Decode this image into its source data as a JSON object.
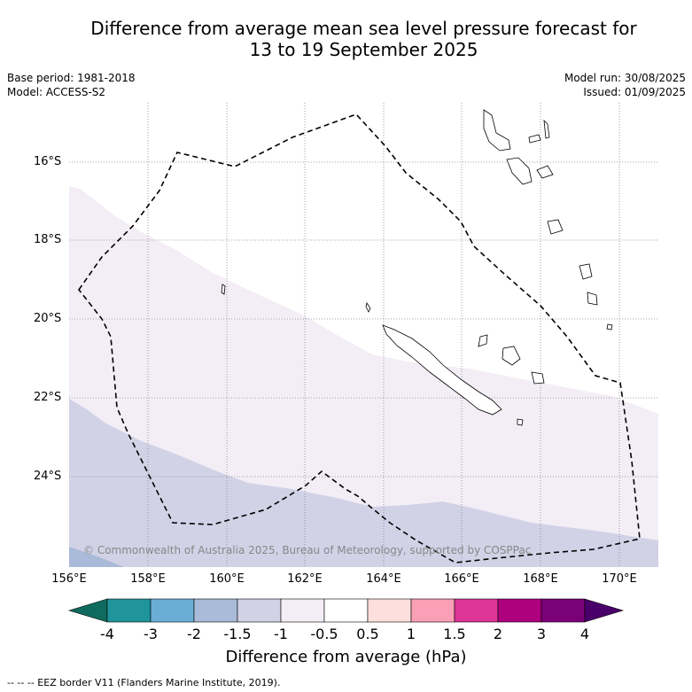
{
  "title_line1": "Difference from average mean sea level pressure forecast for",
  "title_line2": "13 to 19 September 2025",
  "meta_left": [
    "Base period: 1981-2018",
    "Model: ACCESS-S2"
  ],
  "meta_right": [
    "Model run: 30/08/2025",
    "Issued: 01/09/2025"
  ],
  "lat_labels": [
    "16°S",
    "18°S",
    "20°S",
    "22°S",
    "24°S"
  ],
  "lon_labels": [
    "156°E",
    "158°E",
    "160°E",
    "162°E",
    "164°E",
    "166°E",
    "168°E",
    "170°E"
  ],
  "credit": "© Commonwealth of Australia 2025, Bureau of Meteorology, supported by COSPPac",
  "colorbar": {
    "title": "Difference from average (hPa)",
    "ticks": [
      "-4",
      "-3",
      "-2",
      "-1.5",
      "-1",
      "-0.5",
      "0.5",
      "1",
      "1.5",
      "2",
      "3",
      "4"
    ],
    "colors": [
      "#0f6b5e",
      "#1f949b",
      "#6aaed6",
      "#a9bbd8",
      "#d1d2e6",
      "#f3edf6",
      "#ffffff",
      "#fde0dd",
      "#fa9fb5",
      "#dd3497",
      "#ae017e",
      "#7a0177",
      "#49006a"
    ]
  },
  "legend_note": "--  --  -- EEZ border V11 (Flanders Marine Institute, 2019)."
}
